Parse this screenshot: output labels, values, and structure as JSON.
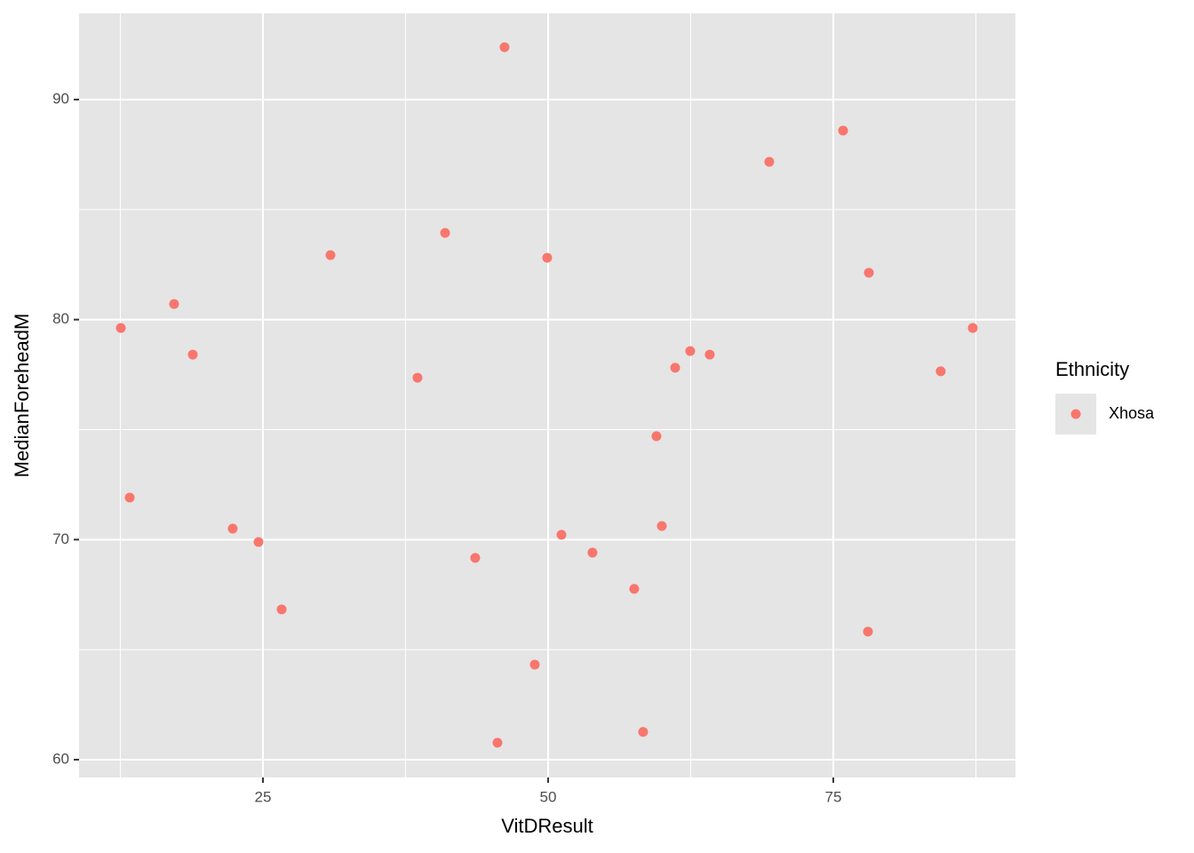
{
  "chart_data": {
    "type": "scatter",
    "x_label": "VitDResult",
    "y_label": "MedianForeheadM",
    "legend_title": "Ethnicity",
    "xlim": [
      8.88,
      90.97
    ],
    "ylim": [
      59.19,
      93.92
    ],
    "xticks": [
      25,
      50,
      75
    ],
    "yticks": [
      60,
      70,
      80,
      90
    ],
    "xminor": [
      12.5,
      37.5,
      62.5,
      87.5
    ],
    "yminor": [
      65,
      75,
      85
    ],
    "grid": true,
    "legend": "right",
    "series": [
      {
        "name": "Xhosa",
        "color": "#F8766D",
        "x": [
          46.18,
          75.86,
          69.39,
          40.97,
          30.92,
          49.92,
          78.12,
          17.21,
          12.54,
          87.23,
          18.85,
          62.46,
          64.17,
          61.14,
          38.55,
          84.42,
          59.5,
          13.32,
          22.35,
          24.61,
          59.97,
          51.17,
          53.89,
          43.61,
          57.55,
          26.64,
          78.04,
          48.83,
          58.33,
          45.56
        ],
        "values": [
          92.38,
          88.59,
          87.17,
          83.94,
          82.93,
          82.81,
          82.13,
          80.71,
          79.62,
          79.62,
          78.41,
          78.57,
          78.41,
          77.81,
          77.36,
          77.65,
          74.7,
          71.91,
          70.5,
          69.89,
          70.62,
          70.22,
          69.41,
          69.17,
          67.76,
          66.83,
          65.82,
          64.32,
          61.26,
          60.77
        ]
      }
    ]
  }
}
